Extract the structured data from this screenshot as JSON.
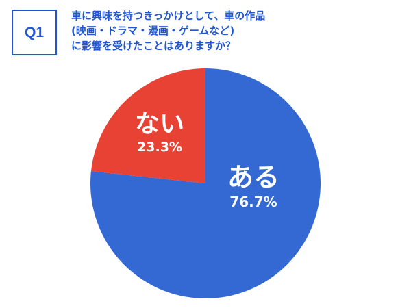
{
  "question": {
    "badge": "Q1",
    "lines": [
      "車に興味を持つきっかけとして、車の作品",
      "(映画・ドラマ・漫画・ゲームなど)",
      "に影響を受けたことはありますか？"
    ]
  },
  "chart_data": {
    "type": "pie",
    "start": "top",
    "direction": "clockwise",
    "slices": [
      {
        "label": "ある",
        "value": 76.7,
        "value_label": "76.7%",
        "color": "#3469d4"
      },
      {
        "label": "ない",
        "value": 23.3,
        "value_label": "23.3%",
        "color": "#e84234"
      }
    ]
  }
}
